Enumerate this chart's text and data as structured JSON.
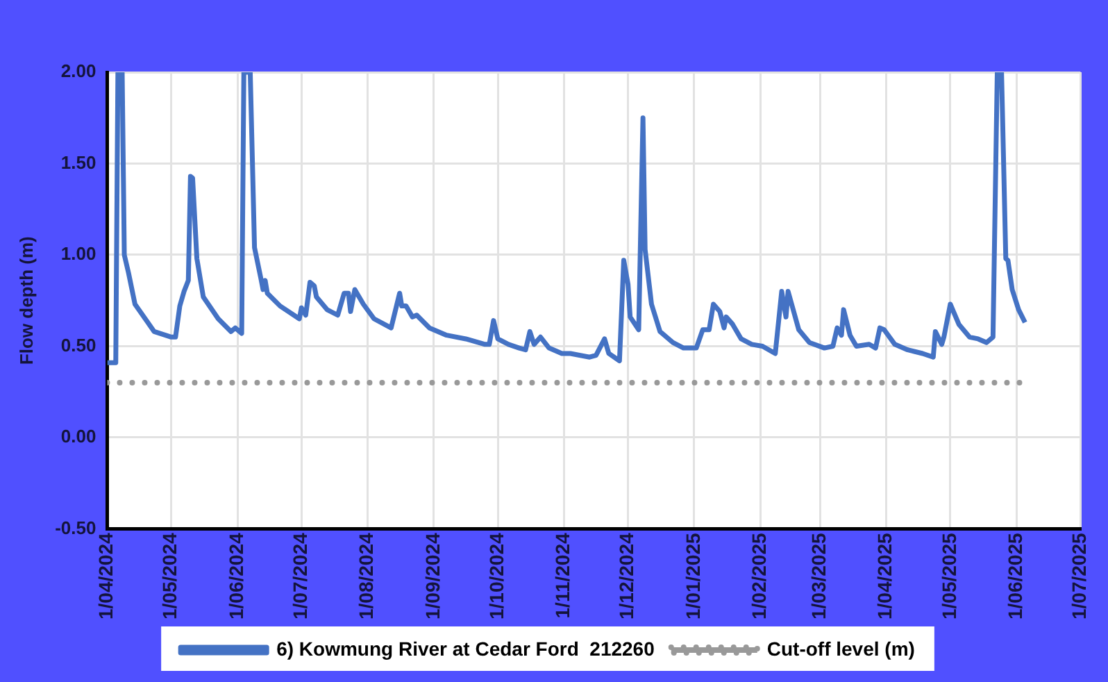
{
  "chart_data": {
    "type": "line",
    "ylabel": "Flow depth (m)",
    "xlim": [
      "2024-04-01",
      "2025-07-01"
    ],
    "xticks": [
      {
        "value": "2024-04-01",
        "label": "1/04/2024"
      },
      {
        "value": "2024-05-01",
        "label": "1/05/2024"
      },
      {
        "value": "2024-06-01",
        "label": "1/06/2024"
      },
      {
        "value": "2024-07-01",
        "label": "1/07/2024"
      },
      {
        "value": "2024-08-01",
        "label": "1/08/2024"
      },
      {
        "value": "2024-09-01",
        "label": "1/09/2024"
      },
      {
        "value": "2024-10-01",
        "label": "1/10/2024"
      },
      {
        "value": "2024-11-01",
        "label": "1/11/2024"
      },
      {
        "value": "2024-12-01",
        "label": "1/12/2024"
      },
      {
        "value": "2025-01-01",
        "label": "1/01/2025"
      },
      {
        "value": "2025-02-01",
        "label": "1/02/2025"
      },
      {
        "value": "2025-03-01",
        "label": "1/03/2025"
      },
      {
        "value": "2025-04-01",
        "label": "1/04/2025"
      },
      {
        "value": "2025-05-01",
        "label": "1/05/2025"
      },
      {
        "value": "2025-06-01",
        "label": "1/06/2025"
      },
      {
        "value": "2025-07-01",
        "label": "1/07/2025"
      }
    ],
    "ylim": [
      -0.5,
      2
    ],
    "yticks": [
      {
        "value": -0.5,
        "label": "-0.50"
      },
      {
        "value": 0,
        "label": "0.00"
      },
      {
        "value": 0.5,
        "label": "0.50"
      },
      {
        "value": 1,
        "label": "1.00"
      },
      {
        "value": 1.5,
        "label": "1.50"
      },
      {
        "value": 2,
        "label": "2.00"
      }
    ],
    "grid": true,
    "legend": "bottom",
    "marker": "none",
    "series": [
      {
        "name": "6) Kowmung River at Cedar Ford  212260",
        "color": "#4472c4",
        "line_style": "solid",
        "x": [
          "2024-04-01",
          "2024-04-05",
          "2024-04-06",
          "2024-04-08",
          "2024-04-09",
          "2024-04-11",
          "2024-04-14",
          "2024-04-20",
          "2024-04-23",
          "2024-05-01",
          "2024-05-03",
          "2024-05-05",
          "2024-05-07",
          "2024-05-09",
          "2024-05-10",
          "2024-05-11",
          "2024-05-13",
          "2024-05-16",
          "2024-05-23",
          "2024-05-29",
          "2024-05-31",
          "2024-06-03",
          "2024-06-04",
          "2024-06-07",
          "2024-06-09",
          "2024-06-12",
          "2024-06-13",
          "2024-06-14",
          "2024-06-15",
          "2024-06-21",
          "2024-06-30",
          "2024-07-01",
          "2024-07-03",
          "2024-07-05",
          "2024-07-07",
          "2024-07-08",
          "2024-07-13",
          "2024-07-18",
          "2024-07-21",
          "2024-07-23",
          "2024-07-24",
          "2024-07-26",
          "2024-07-30",
          "2024-08-04",
          "2024-08-12",
          "2024-08-16",
          "2024-08-17",
          "2024-08-19",
          "2024-08-22",
          "2024-08-24",
          "2024-08-30",
          "2024-09-07",
          "2024-09-16",
          "2024-09-25",
          "2024-09-27",
          "2024-09-29",
          "2024-10-01",
          "2024-10-06",
          "2024-10-11",
          "2024-10-14",
          "2024-10-16",
          "2024-10-18",
          "2024-10-21",
          "2024-10-25",
          "2024-10-31",
          "2024-11-04",
          "2024-11-13",
          "2024-11-16",
          "2024-11-20",
          "2024-11-22",
          "2024-11-27",
          "2024-11-29",
          "2024-12-01",
          "2024-12-02",
          "2024-12-06",
          "2024-12-08",
          "2024-12-09",
          "2024-12-12",
          "2024-12-16",
          "2024-12-22",
          "2024-12-27",
          "2024-12-30",
          "2025-01-02",
          "2025-01-05",
          "2025-01-08",
          "2025-01-10",
          "2025-01-13",
          "2025-01-15",
          "2025-01-16",
          "2025-01-19",
          "2025-01-23",
          "2025-01-28",
          "2025-02-02",
          "2025-02-05",
          "2025-02-08",
          "2025-02-11",
          "2025-02-13",
          "2025-02-14",
          "2025-02-19",
          "2025-02-24",
          "2025-03-03",
          "2025-03-07",
          "2025-03-09",
          "2025-03-11",
          "2025-03-12",
          "2025-03-15",
          "2025-03-18",
          "2025-03-24",
          "2025-03-27",
          "2025-03-29",
          "2025-03-31",
          "2025-04-05",
          "2025-04-11",
          "2025-04-18",
          "2025-04-23",
          "2025-04-24",
          "2025-04-27",
          "2025-04-28",
          "2025-05-01",
          "2025-05-05",
          "2025-05-10",
          "2025-05-14",
          "2025-05-18",
          "2025-05-21",
          "2025-05-23",
          "2025-05-25",
          "2025-05-27",
          "2025-05-28",
          "2025-05-30",
          "2025-06-02",
          "2025-06-05"
        ],
        "values": [
          0.41,
          0.41,
          2.0,
          2.0,
          1.0,
          0.9,
          0.73,
          0.63,
          0.58,
          0.55,
          0.55,
          0.72,
          0.8,
          0.86,
          1.43,
          1.42,
          0.98,
          0.77,
          0.65,
          0.58,
          0.6,
          0.57,
          2.0,
          2.0,
          1.04,
          0.87,
          0.81,
          0.86,
          0.79,
          0.72,
          0.65,
          0.71,
          0.67,
          0.85,
          0.83,
          0.77,
          0.7,
          0.67,
          0.79,
          0.79,
          0.69,
          0.81,
          0.73,
          0.65,
          0.6,
          0.79,
          0.72,
          0.72,
          0.66,
          0.67,
          0.6,
          0.56,
          0.54,
          0.51,
          0.51,
          0.64,
          0.54,
          0.51,
          0.49,
          0.48,
          0.58,
          0.51,
          0.55,
          0.49,
          0.46,
          0.46,
          0.44,
          0.45,
          0.54,
          0.46,
          0.42,
          0.97,
          0.84,
          0.66,
          0.59,
          1.75,
          1.03,
          0.73,
          0.58,
          0.52,
          0.49,
          0.49,
          0.49,
          0.59,
          0.59,
          0.73,
          0.69,
          0.6,
          0.66,
          0.62,
          0.54,
          0.51,
          0.5,
          0.48,
          0.46,
          0.8,
          0.66,
          0.8,
          0.59,
          0.52,
          0.49,
          0.5,
          0.6,
          0.56,
          0.7,
          0.56,
          0.5,
          0.51,
          0.49,
          0.6,
          0.59,
          0.51,
          0.48,
          0.46,
          0.44,
          0.58,
          0.51,
          0.55,
          0.73,
          0.62,
          0.55,
          0.54,
          0.52,
          0.55,
          2.0,
          2.0,
          0.98,
          0.97,
          0.81,
          0.7,
          0.63
        ]
      },
      {
        "name": "Cut-off level (m)",
        "color": "#999999",
        "line_style": "dotted",
        "x": [
          "2024-04-01",
          "2025-06-05"
        ],
        "values": [
          0.3,
          0.3
        ]
      }
    ]
  }
}
